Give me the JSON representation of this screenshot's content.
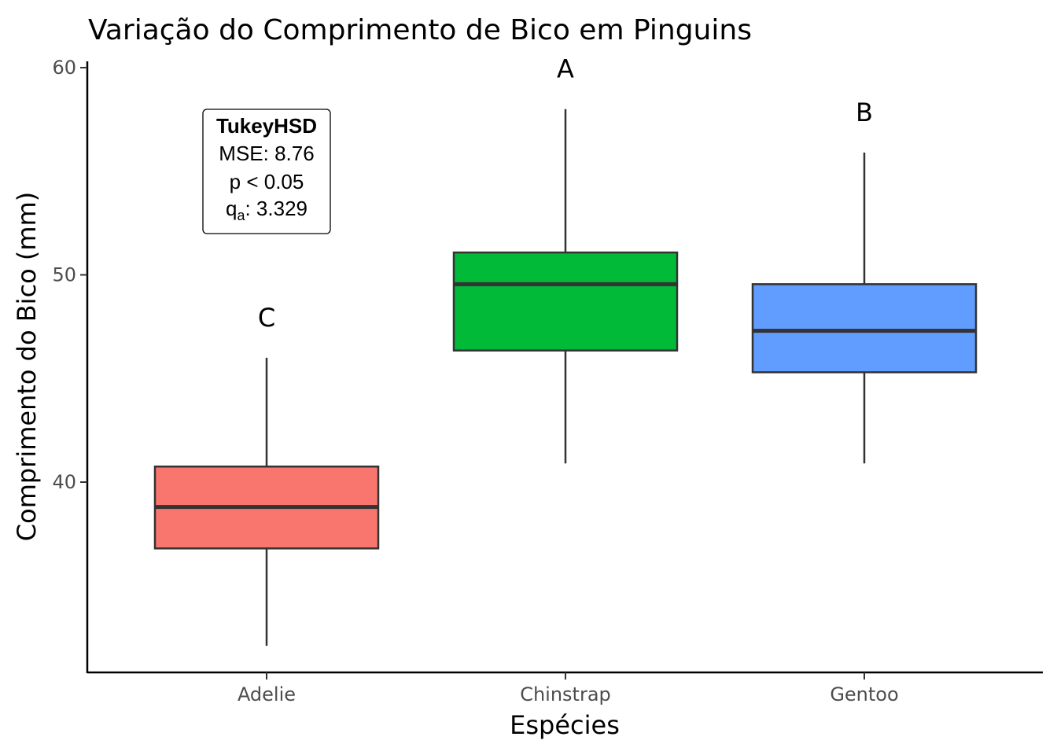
{
  "chart_data": {
    "type": "box",
    "title": "Variação do Comprimento de Bico em Pinguins",
    "xlabel": "Espécies",
    "ylabel": "Comprimento do Bico (mm)",
    "ylim": [
      31,
      60.3
    ],
    "yticks": [
      40,
      50,
      60
    ],
    "grid": false,
    "legend": "none",
    "categories": [
      "Adelie",
      "Chinstrap",
      "Gentoo"
    ],
    "boxes": [
      {
        "category": "Adelie",
        "min": 32.1,
        "q1": 36.8,
        "median": 38.8,
        "q3": 40.75,
        "max": 46.0,
        "color": "#F8766D",
        "group_letter": "C"
      },
      {
        "category": "Chinstrap",
        "min": 40.9,
        "q1": 46.35,
        "median": 49.55,
        "q3": 51.08,
        "max": 58.0,
        "color": "#00BA38",
        "group_letter": "A"
      },
      {
        "category": "Gentoo",
        "min": 40.9,
        "q1": 45.3,
        "median": 47.3,
        "q3": 49.55,
        "max": 55.9,
        "color": "#619CFF",
        "group_letter": "B"
      }
    ],
    "annotation": {
      "heading": "TukeyHSD",
      "lines": [
        "MSE: 8.76",
        "p < 0.05"
      ],
      "q_symbol": "q",
      "q_subscript": "a",
      "q_value": ": 3.329"
    }
  }
}
